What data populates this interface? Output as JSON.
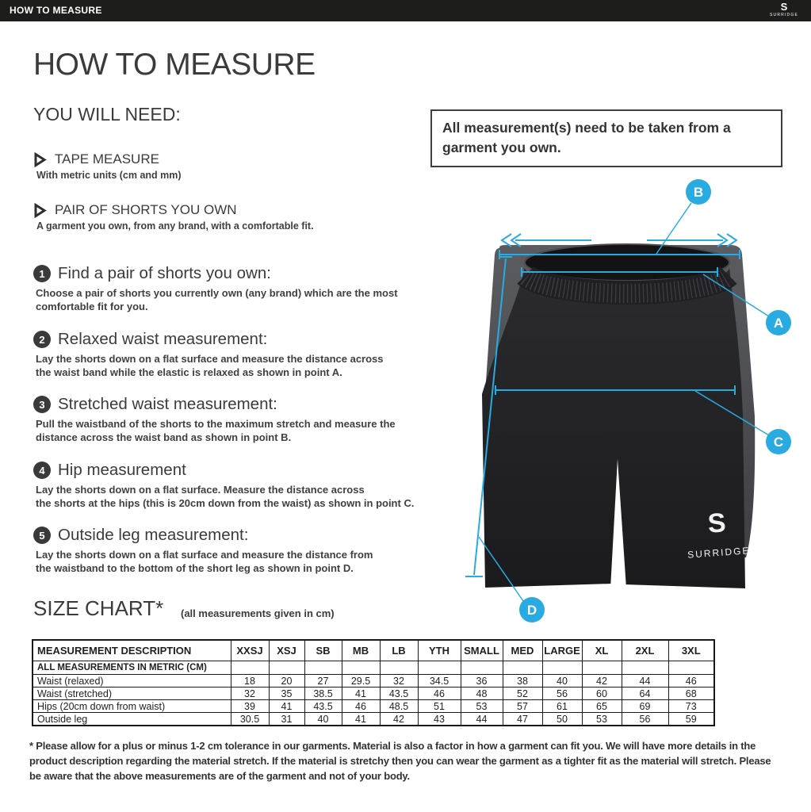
{
  "topbar": {
    "title": "HOW TO MEASURE",
    "logo_glyph": "S",
    "brand": "SURRIDGE"
  },
  "page": {
    "title": "HOW TO MEASURE",
    "you_will_need": {
      "heading": "YOU WILL NEED:",
      "items": [
        {
          "label": "TAPE MEASURE",
          "description": "With metric units (cm and mm)"
        },
        {
          "label": "PAIR OF SHORTS YOU OWN",
          "description": "A garment you own, from any brand, with a comfortable fit."
        }
      ]
    },
    "steps": [
      {
        "number": "1",
        "title": "Find a pair of shorts you own:",
        "body": "Choose a pair of shorts you currently own (any brand) which are the most\ncomfortable fit for you."
      },
      {
        "number": "2",
        "title": "Relaxed waist measurement:",
        "body": "Lay the shorts down on a flat surface and measure the distance across\nthe waist band while the elastic is relaxed as shown in point A."
      },
      {
        "number": "3",
        "title": "Stretched waist measurement:",
        "body": "Pull the waistband of the shorts to the maximum stretch and measure the\ndistance across the waist band as shown in point B."
      },
      {
        "number": "4",
        "title": "Hip measurement",
        "body": "Lay the shorts down on a flat surface. Measure the distance across\nthe shorts at the hips (this is 20cm down from the waist)  as shown in point C."
      },
      {
        "number": "5",
        "title": "Outside leg measurement:",
        "body": "Lay the shorts down on a flat surface and measure the distance from\nthe waistband to the bottom of the short leg as shown in point D."
      }
    ],
    "note": "All measurement(s) need to be taken from a garment you own.",
    "diagram": {
      "accent_color": "#29abe2",
      "brand_s": "S",
      "brand_logo": "SURRIDGE",
      "markers": {
        "a": "A",
        "b": "B",
        "c": "C",
        "d": "D"
      }
    },
    "size_chart": {
      "heading": "SIZE CHART*",
      "subheading": "(all measurements given in cm)",
      "columns": [
        "MEASUREMENT DESCRIPTION",
        "XXSJ",
        "XSJ",
        "SB",
        "MB",
        "LB",
        "YTH",
        "SMALL",
        "MED",
        "LARGE",
        "XL",
        "2XL",
        "3XL"
      ],
      "metric_note": "ALL MEASUREMENTS IN METRIC (CM)",
      "rows": [
        {
          "label": "Waist (relaxed)",
          "values": [
            "18",
            "20",
            "27",
            "29.5",
            "32",
            "34.5",
            "36",
            "38",
            "40",
            "42",
            "44",
            "46"
          ]
        },
        {
          "label": "Waist (stretched)",
          "values": [
            "32",
            "35",
            "38.5",
            "41",
            "43.5",
            "46",
            "48",
            "52",
            "56",
            "60",
            "64",
            "68"
          ]
        },
        {
          "label": "Hips (20cm down from waist)",
          "values": [
            "39",
            "41",
            "43.5",
            "46",
            "48.5",
            "51",
            "53",
            "57",
            "61",
            "65",
            "69",
            "73"
          ]
        },
        {
          "label": "Outside leg",
          "values": [
            "30.5",
            "31",
            "40",
            "41",
            "42",
            "43",
            "44",
            "47",
            "50",
            "53",
            "56",
            "59"
          ]
        }
      ]
    },
    "footnote": "* Please allow for a plus or minus 1-2 cm tolerance in our garments. Material is also a factor in how a garment can fit you. We will have more details in the product description regarding the material stretch.  If the material is stretchy then you can wear the garment as a tighter fit as the material will stretch.  Please be aware that the above measurements are of the garment and not of your body."
  }
}
